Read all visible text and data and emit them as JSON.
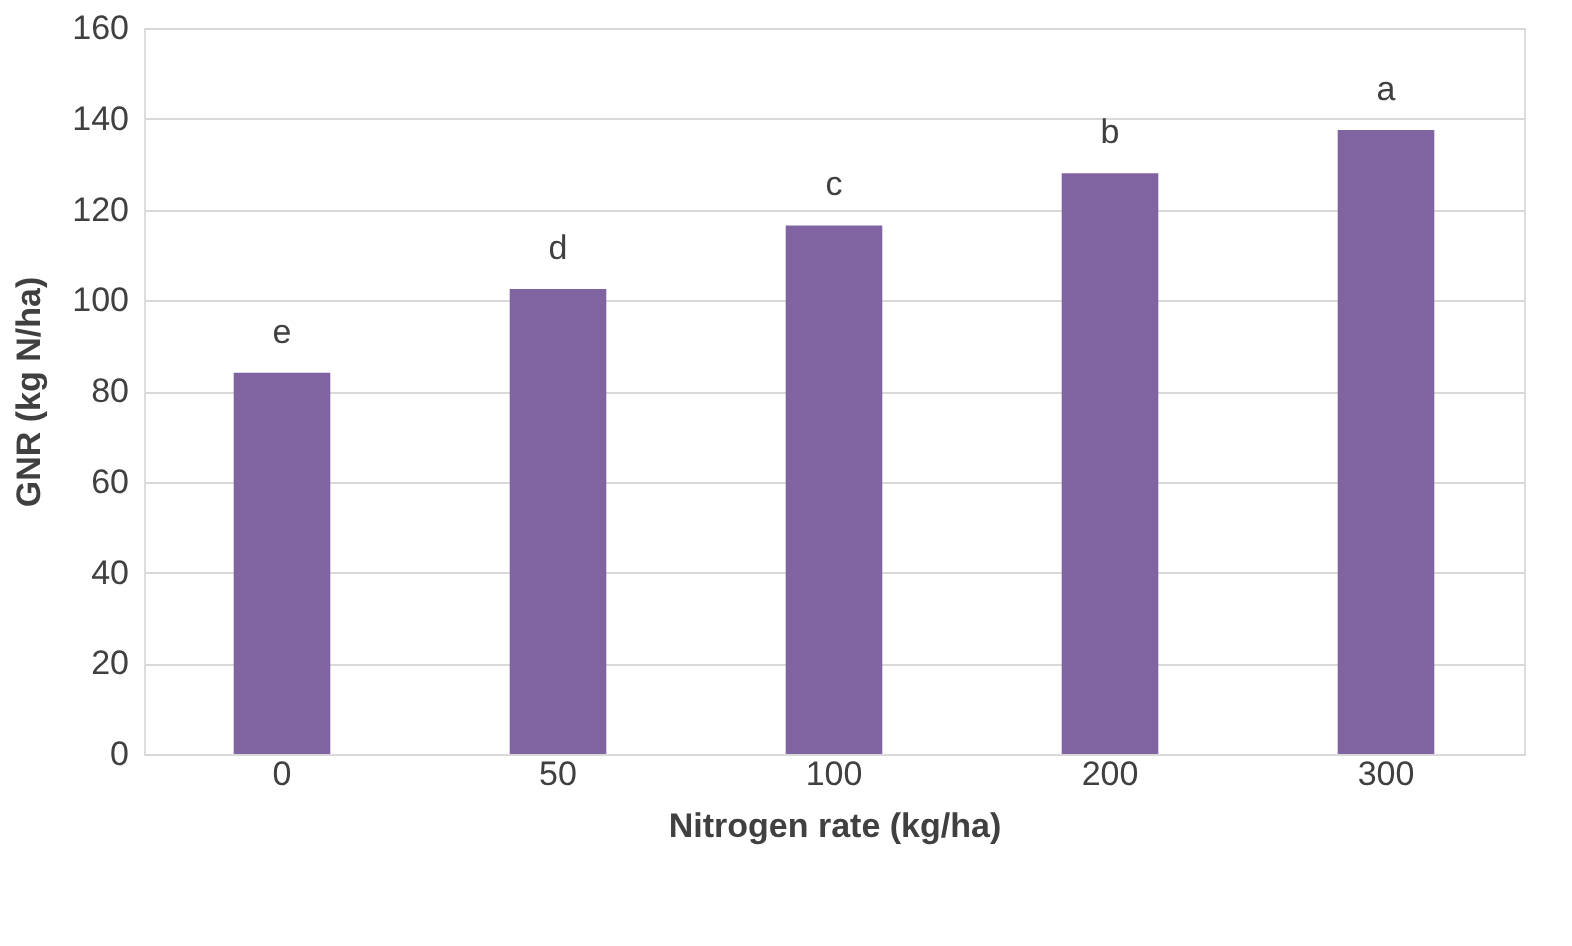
{
  "chart_data": {
    "type": "bar",
    "xlabel": "Nitrogen rate (kg/ha)",
    "ylabel": "GNR (kg N/ha)",
    "categories": [
      "0",
      "50",
      "100",
      "200",
      "300"
    ],
    "values": [
      84,
      102.5,
      116.5,
      128,
      137.5
    ],
    "color": "#8064a2",
    "ylim": [
      0,
      160
    ],
    "yticks": [
      0,
      20,
      40,
      60,
      80,
      100,
      120,
      140,
      160
    ],
    "grid": "y",
    "annotations": [
      {
        "text": "e",
        "x": "0",
        "y": 84
      },
      {
        "text": "d",
        "x": "50",
        "y": 102.5
      },
      {
        "text": "c",
        "x": "100",
        "y": 116.5
      },
      {
        "text": "b",
        "x": "200",
        "y": 128
      },
      {
        "text": "a",
        "x": "300",
        "y": 137.5
      }
    ]
  }
}
